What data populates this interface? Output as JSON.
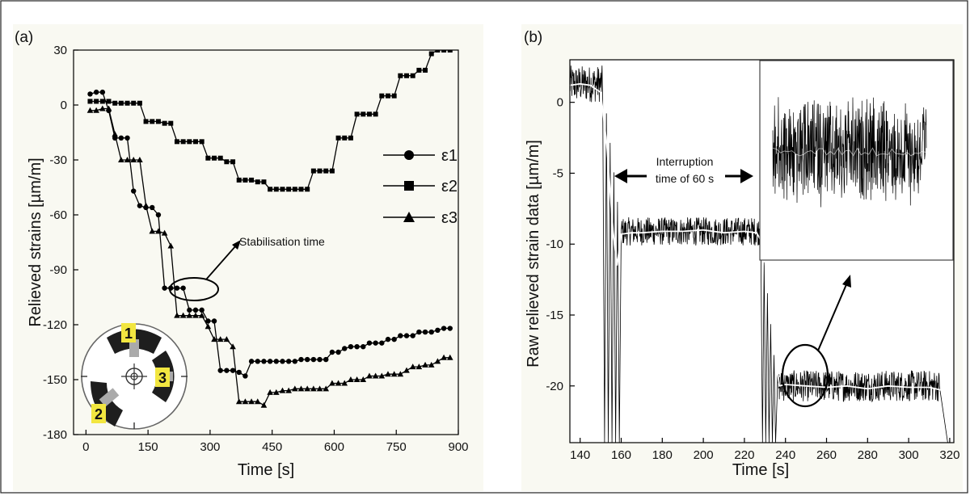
{
  "chart_data": [
    {
      "panel_label": "(a)",
      "type": "line",
      "xlabel": "Time [s]",
      "ylabel": "Relieved strains [µm/m]",
      "xlim": [
        -30,
        900
      ],
      "ylim": [
        -180,
        30
      ],
      "xticks": [
        0,
        150,
        300,
        450,
        600,
        750,
        900
      ],
      "yticks": [
        30,
        0,
        -30,
        -60,
        -90,
        -120,
        -150,
        -180
      ],
      "grid": false,
      "legend_position": "right",
      "annotation": "Stabilisation time",
      "gauge_labels": [
        "1",
        "2",
        "3"
      ],
      "series": [
        {
          "name": "ε1",
          "marker": "circle",
          "x": [
            10,
            25,
            40,
            55,
            70,
            85,
            100,
            115,
            130,
            145,
            160,
            175,
            190,
            205,
            220,
            235,
            250,
            265,
            280,
            295,
            310,
            325,
            340,
            355,
            370,
            385,
            400,
            415,
            430,
            445,
            460,
            475,
            490,
            505,
            520,
            535,
            550,
            565,
            580,
            595,
            610,
            625,
            640,
            655,
            670,
            685,
            700,
            715,
            730,
            745,
            760,
            775,
            790,
            805,
            820,
            835,
            850,
            865,
            880
          ],
          "y": [
            6,
            7,
            7,
            -3,
            -18,
            -18,
            -18,
            -47,
            -55,
            -56,
            -56,
            -60,
            -100,
            -100,
            -100,
            -100,
            -112,
            -112,
            -112,
            -118,
            -118,
            -145,
            -145,
            -145,
            -146,
            -148,
            -140,
            -140,
            -140,
            -140,
            -140,
            -140,
            -140,
            -140,
            -139,
            -139,
            -139,
            -139,
            -139,
            -135,
            -135,
            -133,
            -132,
            -132,
            -132,
            -130,
            -130,
            -130,
            -128,
            -128,
            -126,
            -126,
            -126,
            -124,
            -124,
            -124,
            -123,
            -122,
            -122
          ]
        },
        {
          "name": "ε2",
          "marker": "square",
          "x": [
            10,
            25,
            40,
            55,
            70,
            85,
            100,
            115,
            130,
            145,
            160,
            175,
            190,
            205,
            220,
            235,
            250,
            265,
            280,
            295,
            310,
            325,
            340,
            355,
            370,
            385,
            400,
            415,
            430,
            445,
            460,
            475,
            490,
            505,
            520,
            535,
            550,
            565,
            580,
            595,
            610,
            625,
            640,
            655,
            670,
            685,
            700,
            715,
            730,
            745,
            760,
            775,
            790,
            805,
            820,
            835,
            850,
            865,
            880
          ],
          "y": [
            2,
            2,
            2,
            2,
            1,
            1,
            1,
            1,
            1,
            -9,
            -9,
            -9,
            -10,
            -10,
            -20,
            -20,
            -20,
            -20,
            -20,
            -29,
            -29,
            -29,
            -31,
            -31,
            -41,
            -41,
            -41,
            -42,
            -42,
            -46,
            -46,
            -46,
            -46,
            -46,
            -46,
            -46,
            -36,
            -36,
            -36,
            -36,
            -18,
            -18,
            -18,
            -5,
            -5,
            -5,
            -5,
            5,
            5,
            5,
            16,
            16,
            16,
            19,
            19,
            28,
            30,
            30,
            30
          ]
        },
        {
          "name": "ε3",
          "marker": "triangle",
          "x": [
            10,
            25,
            40,
            55,
            70,
            85,
            100,
            115,
            130,
            145,
            160,
            175,
            190,
            205,
            220,
            235,
            250,
            265,
            280,
            295,
            310,
            325,
            340,
            355,
            370,
            385,
            400,
            415,
            430,
            445,
            460,
            475,
            490,
            505,
            520,
            535,
            550,
            565,
            580,
            595,
            610,
            625,
            640,
            655,
            670,
            685,
            700,
            715,
            730,
            745,
            760,
            775,
            790,
            805,
            820,
            835,
            850,
            865,
            880
          ],
          "y": [
            -3,
            -3,
            -2,
            -2,
            -16,
            -30,
            -30,
            -30,
            -30,
            -55,
            -69,
            -69,
            -70,
            -77,
            -115,
            -115,
            -115,
            -115,
            -115,
            -121,
            -128,
            -128,
            -128,
            -132,
            -162,
            -162,
            -162,
            -162,
            -164,
            -157,
            -157,
            -156,
            -156,
            -155,
            -155,
            -155,
            -155,
            -155,
            -155,
            -152,
            -152,
            -152,
            -150,
            -150,
            -150,
            -148,
            -148,
            -148,
            -147,
            -147,
            -147,
            -145,
            -143,
            -143,
            -142,
            -142,
            -140,
            -138,
            -138
          ]
        }
      ]
    },
    {
      "panel_label": "(b)",
      "type": "line",
      "xlabel": "Time [s]",
      "ylabel": "Raw relieved strain data [µm/m]",
      "xlim": [
        135,
        322
      ],
      "ylim": [
        -24,
        3
      ],
      "xticks": [
        140,
        160,
        180,
        200,
        220,
        240,
        260,
        280,
        300,
        320
      ],
      "yticks": [
        0,
        -5,
        -10,
        -15,
        -20
      ],
      "grid": false,
      "annotation": [
        "Interruption",
        "time of 60 s"
      ],
      "raw_segments": [
        {
          "x_start": 135,
          "x_end": 151,
          "mean": 1.3,
          "spread": 1.3
        },
        {
          "x_start": 160,
          "x_end": 228,
          "mean": -9.1,
          "spread": 1.0
        },
        {
          "x_start": 236,
          "x_end": 315,
          "mean": -20.0,
          "spread": 1.1
        }
      ],
      "smoothed": {
        "x": [
          135,
          140,
          145,
          150,
          153,
          156,
          158,
          160,
          165,
          170,
          180,
          190,
          200,
          210,
          220,
          226,
          229,
          233,
          237,
          240,
          250,
          260,
          270,
          280,
          290,
          300,
          310,
          316,
          320
        ],
        "y": [
          1.2,
          1.3,
          1.2,
          0.7,
          -3,
          -9,
          -11.5,
          -9.3,
          -9.2,
          -9.2,
          -9.1,
          -9.1,
          -9.0,
          -9.2,
          -9.1,
          -9.2,
          -10,
          -15,
          -20,
          -19.9,
          -20.0,
          -20.1,
          -20.0,
          -20.2,
          -20.0,
          -20.1,
          -20.1,
          -20.3,
          -21
        ]
      }
    }
  ]
}
